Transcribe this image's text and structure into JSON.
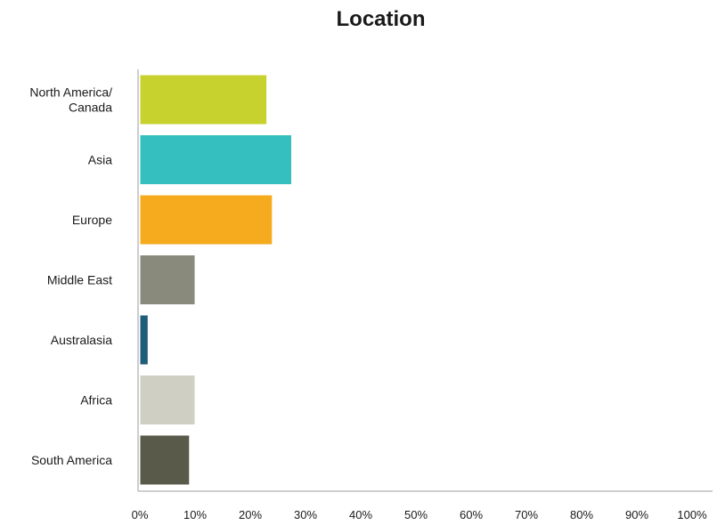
{
  "chart_data": {
    "type": "bar",
    "orientation": "horizontal",
    "title": "Location",
    "xlabel": "",
    "ylabel": "",
    "categories": [
      [
        "North America/",
        "Canada"
      ],
      [
        "Asia"
      ],
      [
        "Europe"
      ],
      [
        "Middle East"
      ],
      [
        "Australasia"
      ],
      [
        "Africa"
      ],
      [
        "South America"
      ]
    ],
    "values": [
      23,
      27.5,
      24,
      10,
      1.5,
      10,
      9
    ],
    "colors": [
      "#c8d22e",
      "#35bfbf",
      "#f5ab1d",
      "#8a8a7c",
      "#1f5e78",
      "#cfcfc4",
      "#5a5a4a"
    ],
    "xlim": [
      0,
      100
    ],
    "x_ticks": [
      "0%",
      "10%",
      "20%",
      "30%",
      "40%",
      "50%",
      "60%",
      "70%",
      "80%",
      "90%",
      "100%"
    ],
    "grid": false,
    "legend": "none"
  }
}
